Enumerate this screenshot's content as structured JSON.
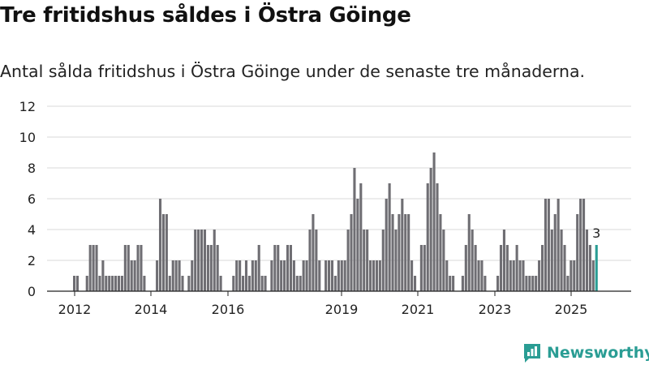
{
  "title": "Tre fritidshus såldes i Östra Göinge",
  "subtitle": "Antal sålda fritidshus i Östra Göinge under de senaste tre månaderna.",
  "brand": "Newsworthy",
  "chart_data": {
    "type": "bar",
    "title": "Tre fritidshus såldes i Östra Göinge",
    "subtitle": "Antal sålda fritidshus i Östra Göinge under de senaste tre månaderna.",
    "xlabel": "",
    "ylabel": "",
    "ylim": [
      0,
      12
    ],
    "yticks": [
      0,
      2,
      4,
      6,
      8,
      10,
      12
    ],
    "xticks": [
      "2012",
      "2014",
      "2016",
      "2019",
      "2021",
      "2023",
      "2025"
    ],
    "grid": true,
    "bar_color": "#6f6e73",
    "highlight_color": "#2a9d94",
    "highlight_label": "3",
    "values": [
      1,
      1,
      0,
      0,
      1,
      3,
      3,
      3,
      1,
      2,
      1,
      1,
      1,
      1,
      1,
      1,
      3,
      3,
      2,
      2,
      3,
      3,
      1,
      0,
      0,
      0,
      2,
      6,
      5,
      5,
      1,
      2,
      2,
      2,
      1,
      0,
      1,
      2,
      4,
      4,
      4,
      4,
      3,
      3,
      4,
      3,
      1,
      0,
      0,
      0,
      1,
      2,
      2,
      1,
      2,
      1,
      2,
      2,
      3,
      1,
      1,
      0,
      2,
      3,
      3,
      2,
      2,
      3,
      3,
      2,
      1,
      1,
      2,
      2,
      4,
      5,
      4,
      2,
      0,
      2,
      2,
      2,
      1,
      2,
      2,
      2,
      4,
      5,
      8,
      6,
      7,
      4,
      4,
      2,
      2,
      2,
      2,
      4,
      6,
      7,
      5,
      4,
      5,
      6,
      5,
      5,
      2,
      1,
      0,
      3,
      3,
      7,
      8,
      9,
      7,
      5,
      4,
      2,
      1,
      1,
      0,
      0,
      1,
      3,
      5,
      4,
      3,
      2,
      2,
      1,
      0,
      0,
      0,
      1,
      3,
      4,
      3,
      2,
      2,
      3,
      2,
      2,
      1,
      1,
      1,
      1,
      2,
      3,
      6,
      6,
      4,
      5,
      6,
      4,
      3,
      1,
      2,
      2,
      5,
      6,
      6,
      4,
      3,
      2,
      3
    ]
  }
}
